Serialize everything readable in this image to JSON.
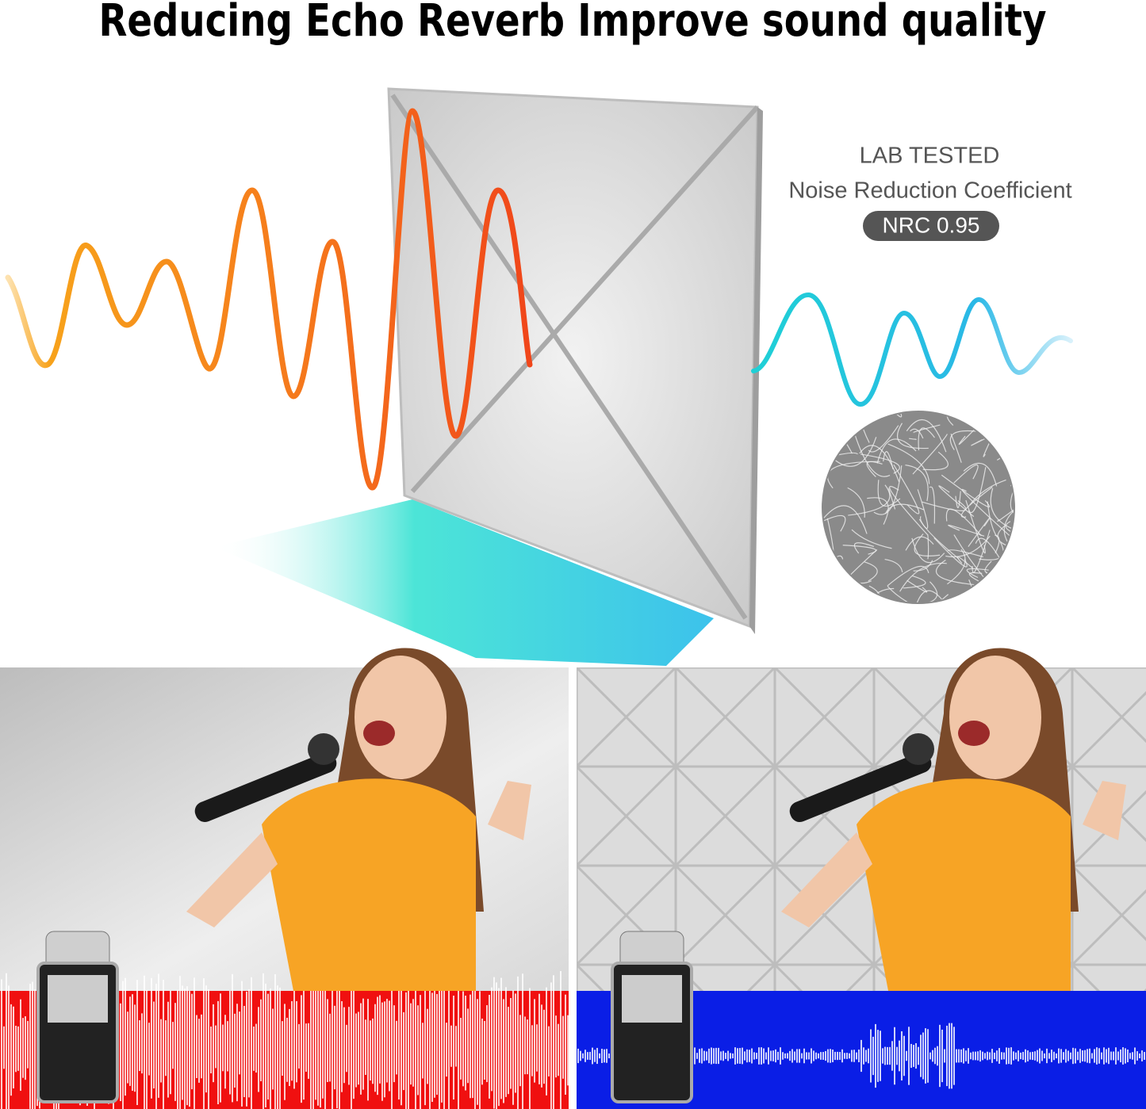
{
  "header": {
    "title": "Reducing Echo Reverb Improve sound quality"
  },
  "badge": {
    "line1": "LAB TESTED",
    "line2": "Noise Reduction Coefficient",
    "rating": "NRC 0.95"
  }
}
